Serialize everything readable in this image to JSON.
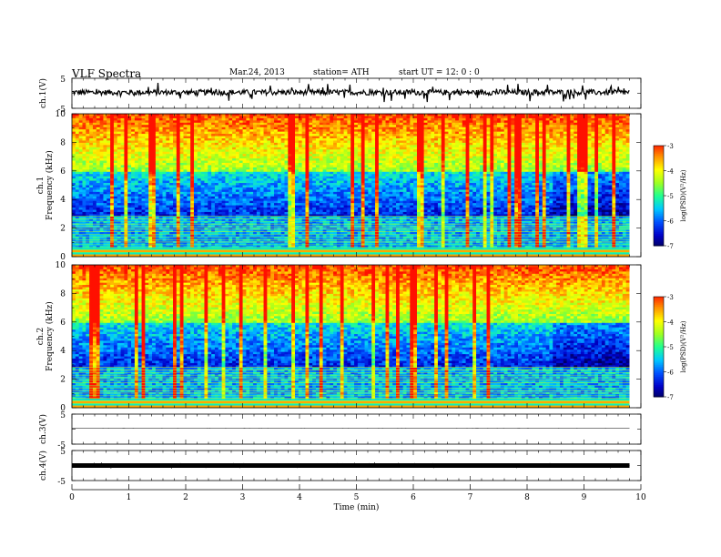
{
  "header": {
    "title": "VLF  Spectra",
    "date": "Mar.24, 2013",
    "station": "station= ATH",
    "start": "start  UT  =    12: 0  : 0"
  },
  "colors": {
    "background": "#ffffff",
    "axis": "#000000",
    "colormap": [
      "#000050",
      "#0000c8",
      "#0050ff",
      "#00c8ff",
      "#20ff90",
      "#a0ff20",
      "#ffff00",
      "#ff9000",
      "#ff1000",
      "#ffffff"
    ]
  },
  "chart_data": [
    {
      "type": "line",
      "panel": "ch1-waveform",
      "ylabel": "ch.1(V)",
      "yticks": [
        "5",
        "-5"
      ],
      "ylim": [
        -5,
        5
      ],
      "xlim": [
        0,
        10
      ],
      "xlabel": "Time  (min)",
      "xticks": [
        "0",
        "1",
        "2",
        "3",
        "4",
        "5",
        "6",
        "7",
        "8",
        "9",
        "10"
      ],
      "data_end_min": 9.8,
      "series": [
        {
          "x": [
            0,
            9.8
          ],
          "mean": 0.3,
          "noise_amplitude": 1.5
        }
      ]
    },
    {
      "type": "heatmap",
      "panel": "ch1-spectrogram",
      "ylabel": "ch.1\nFrequency  (kHz)",
      "yticks": [
        "0",
        "2",
        "4",
        "6",
        "8",
        "10"
      ],
      "ylim": [
        0,
        10
      ],
      "xlim": [
        0,
        10
      ],
      "data_end_min": 9.8,
      "colorbar": {
        "label": "log(PSD)(V²/Hz)",
        "ticks": [
          "-3",
          "-4",
          "-5",
          "-6",
          "-7"
        ],
        "range": [
          -7,
          -3
        ]
      }
    },
    {
      "type": "heatmap",
      "panel": "ch2-spectrogram",
      "ylabel": "ch.2\nFrequency  (kHz)",
      "yticks": [
        "0",
        "2",
        "4",
        "6",
        "8",
        "10"
      ],
      "ylim": [
        0,
        10
      ],
      "xlim": [
        0,
        10
      ],
      "data_end_min": 9.8,
      "colorbar": {
        "label": "log(PSD)(V²/Hz)",
        "ticks": [
          "-3",
          "-4",
          "-5",
          "-6",
          "-7"
        ],
        "range": [
          -7,
          -3
        ]
      }
    },
    {
      "type": "line",
      "panel": "ch3-waveform",
      "ylabel": "ch.3(V)",
      "yticks": [
        "5",
        "-5"
      ],
      "ylim": [
        -5,
        5
      ],
      "xlim": [
        0,
        10
      ],
      "data_end_min": 9.8,
      "series": [
        {
          "x": [
            0,
            9.8
          ],
          "mean": 0.3,
          "noise_amplitude": 0.02
        }
      ]
    },
    {
      "type": "line",
      "panel": "ch4-waveform",
      "ylabel": "ch.4(V)",
      "yticks": [
        "5",
        "-5"
      ],
      "ylim": [
        -5,
        5
      ],
      "xlim": [
        0,
        10
      ],
      "data_end_min": 9.8,
      "series": [
        {
          "x": [
            0,
            9.8
          ],
          "mean": 0.0,
          "noise_amplitude": 0.3
        }
      ]
    }
  ]
}
